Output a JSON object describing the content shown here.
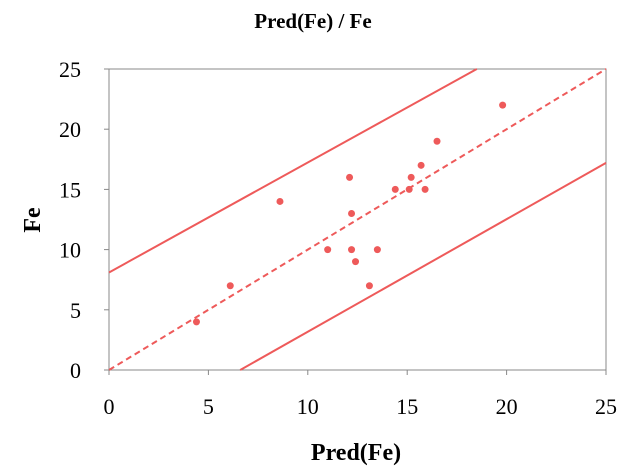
{
  "chart_data": {
    "type": "scatter",
    "title": "Pred(Fe) / Fe",
    "xlabel": "Pred(Fe)",
    "ylabel": "Fe",
    "xlim": [
      0,
      25
    ],
    "ylim": [
      0,
      25
    ],
    "xticks": [
      "0",
      "5",
      "10",
      "15",
      "20",
      "25"
    ],
    "yticks": [
      "0",
      "5",
      "10",
      "15",
      "20",
      "25"
    ],
    "grid": false,
    "color": "#ee5a5a",
    "points": [
      {
        "x": 4.4,
        "y": 4
      },
      {
        "x": 6.1,
        "y": 7
      },
      {
        "x": 8.6,
        "y": 14
      },
      {
        "x": 11.0,
        "y": 10
      },
      {
        "x": 12.1,
        "y": 16
      },
      {
        "x": 12.2,
        "y": 13
      },
      {
        "x": 12.2,
        "y": 10
      },
      {
        "x": 12.4,
        "y": 9
      },
      {
        "x": 13.1,
        "y": 7
      },
      {
        "x": 13.5,
        "y": 10
      },
      {
        "x": 14.4,
        "y": 15
      },
      {
        "x": 15.1,
        "y": 15
      },
      {
        "x": 15.2,
        "y": 16
      },
      {
        "x": 15.7,
        "y": 17
      },
      {
        "x": 15.9,
        "y": 15
      },
      {
        "x": 16.5,
        "y": 19
      },
      {
        "x": 19.8,
        "y": 22
      }
    ],
    "reference_line": {
      "style": "dashed",
      "points": [
        [
          0,
          0
        ],
        [
          25,
          25
        ]
      ]
    },
    "upper_bound": {
      "style": "solid",
      "points": [
        [
          0,
          8.1
        ],
        [
          18.5,
          25
        ]
      ]
    },
    "lower_bound": {
      "style": "solid",
      "points": [
        [
          6.6,
          0
        ],
        [
          25,
          17.2
        ]
      ]
    }
  }
}
